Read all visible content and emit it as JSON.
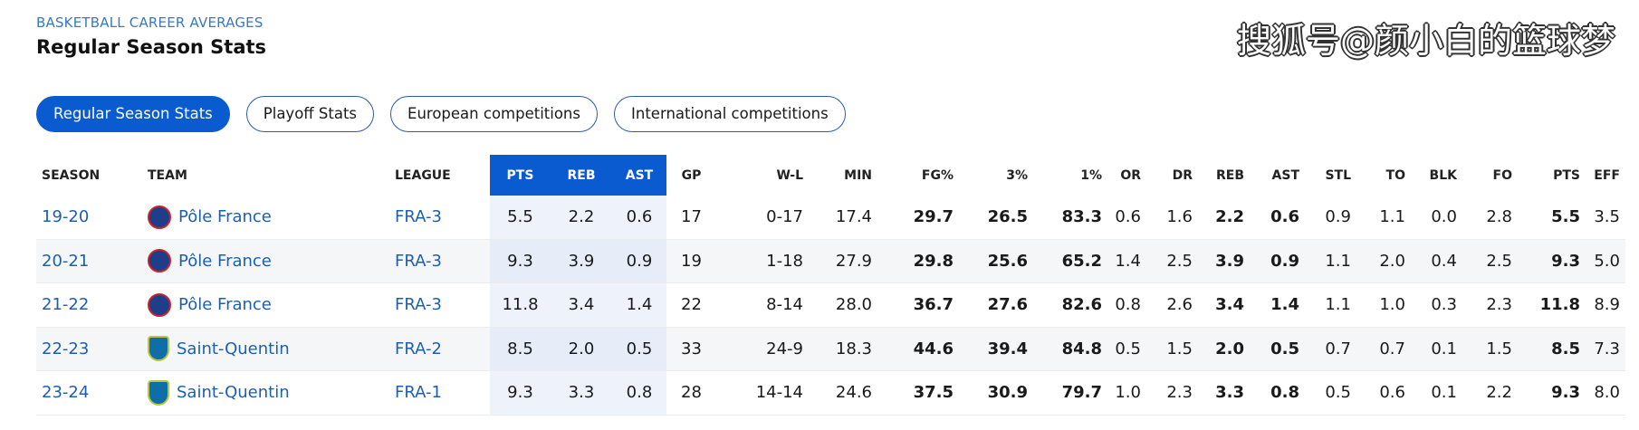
{
  "header": {
    "eyebrow": "BASKETBALL CAREER AVERAGES",
    "title": "Regular Season Stats"
  },
  "watermark": "搜狐号@颜小白的篮球梦",
  "tabs": [
    {
      "label": "Regular Season Stats",
      "active": true
    },
    {
      "label": "Playoff Stats",
      "active": false
    },
    {
      "label": "European competitions",
      "active": false
    },
    {
      "label": "International competitions",
      "active": false
    }
  ],
  "table": {
    "columns": [
      "SEASON",
      "TEAM",
      "LEAGUE",
      "PTS",
      "REB",
      "AST",
      "GP",
      "W-L",
      "MIN",
      "FG%",
      "3%",
      "1%",
      "OR",
      "DR",
      "REB",
      "AST",
      "STL",
      "TO",
      "BLK",
      "FO",
      "PTS",
      "EFF"
    ],
    "rows": [
      {
        "season": "19-20",
        "team": "Pôle France",
        "logo": "pole-france-logo",
        "league": "FRA-3",
        "pts": "5.5",
        "reb": "2.2",
        "ast": "0.6",
        "gp": "17",
        "wl": "0-17",
        "min": "17.4",
        "fg": "29.7",
        "three": "26.5",
        "one": "83.3",
        "or": "0.6",
        "dr": "1.6",
        "reb2": "2.2",
        "ast2": "0.6",
        "stl": "0.9",
        "to": "1.1",
        "blk": "0.0",
        "fo": "2.8",
        "pts2": "5.5",
        "eff": "3.5"
      },
      {
        "season": "20-21",
        "team": "Pôle France",
        "logo": "pole-france-logo",
        "league": "FRA-3",
        "pts": "9.3",
        "reb": "3.9",
        "ast": "0.9",
        "gp": "19",
        "wl": "1-18",
        "min": "27.9",
        "fg": "29.8",
        "three": "25.6",
        "one": "65.2",
        "or": "1.4",
        "dr": "2.5",
        "reb2": "3.9",
        "ast2": "0.9",
        "stl": "1.1",
        "to": "2.0",
        "blk": "0.4",
        "fo": "2.5",
        "pts2": "9.3",
        "eff": "5.0"
      },
      {
        "season": "21-22",
        "team": "Pôle France",
        "logo": "pole-france-logo",
        "league": "FRA-3",
        "pts": "11.8",
        "reb": "3.4",
        "ast": "1.4",
        "gp": "22",
        "wl": "8-14",
        "min": "28.0",
        "fg": "36.7",
        "three": "27.6",
        "one": "82.6",
        "or": "0.8",
        "dr": "2.6",
        "reb2": "3.4",
        "ast2": "1.4",
        "stl": "1.1",
        "to": "1.0",
        "blk": "0.3",
        "fo": "2.3",
        "pts2": "11.8",
        "eff": "8.9"
      },
      {
        "season": "22-23",
        "team": "Saint-Quentin",
        "logo": "saint-quentin-logo",
        "league": "FRA-2",
        "pts": "8.5",
        "reb": "2.0",
        "ast": "0.5",
        "gp": "33",
        "wl": "24-9",
        "min": "18.3",
        "fg": "44.6",
        "three": "39.4",
        "one": "84.8",
        "or": "0.5",
        "dr": "1.5",
        "reb2": "2.0",
        "ast2": "0.5",
        "stl": "0.7",
        "to": "0.7",
        "blk": "0.1",
        "fo": "1.5",
        "pts2": "8.5",
        "eff": "7.3"
      },
      {
        "season": "23-24",
        "team": "Saint-Quentin",
        "logo": "saint-quentin-logo",
        "league": "FRA-1",
        "pts": "9.3",
        "reb": "3.3",
        "ast": "0.8",
        "gp": "28",
        "wl": "14-14",
        "min": "24.6",
        "fg": "37.5",
        "three": "30.9",
        "one": "79.7",
        "or": "1.0",
        "dr": "2.3",
        "reb2": "3.3",
        "ast2": "0.8",
        "stl": "0.5",
        "to": "0.6",
        "blk": "0.1",
        "fo": "2.2",
        "pts2": "9.3",
        "eff": "8.0"
      }
    ]
  }
}
